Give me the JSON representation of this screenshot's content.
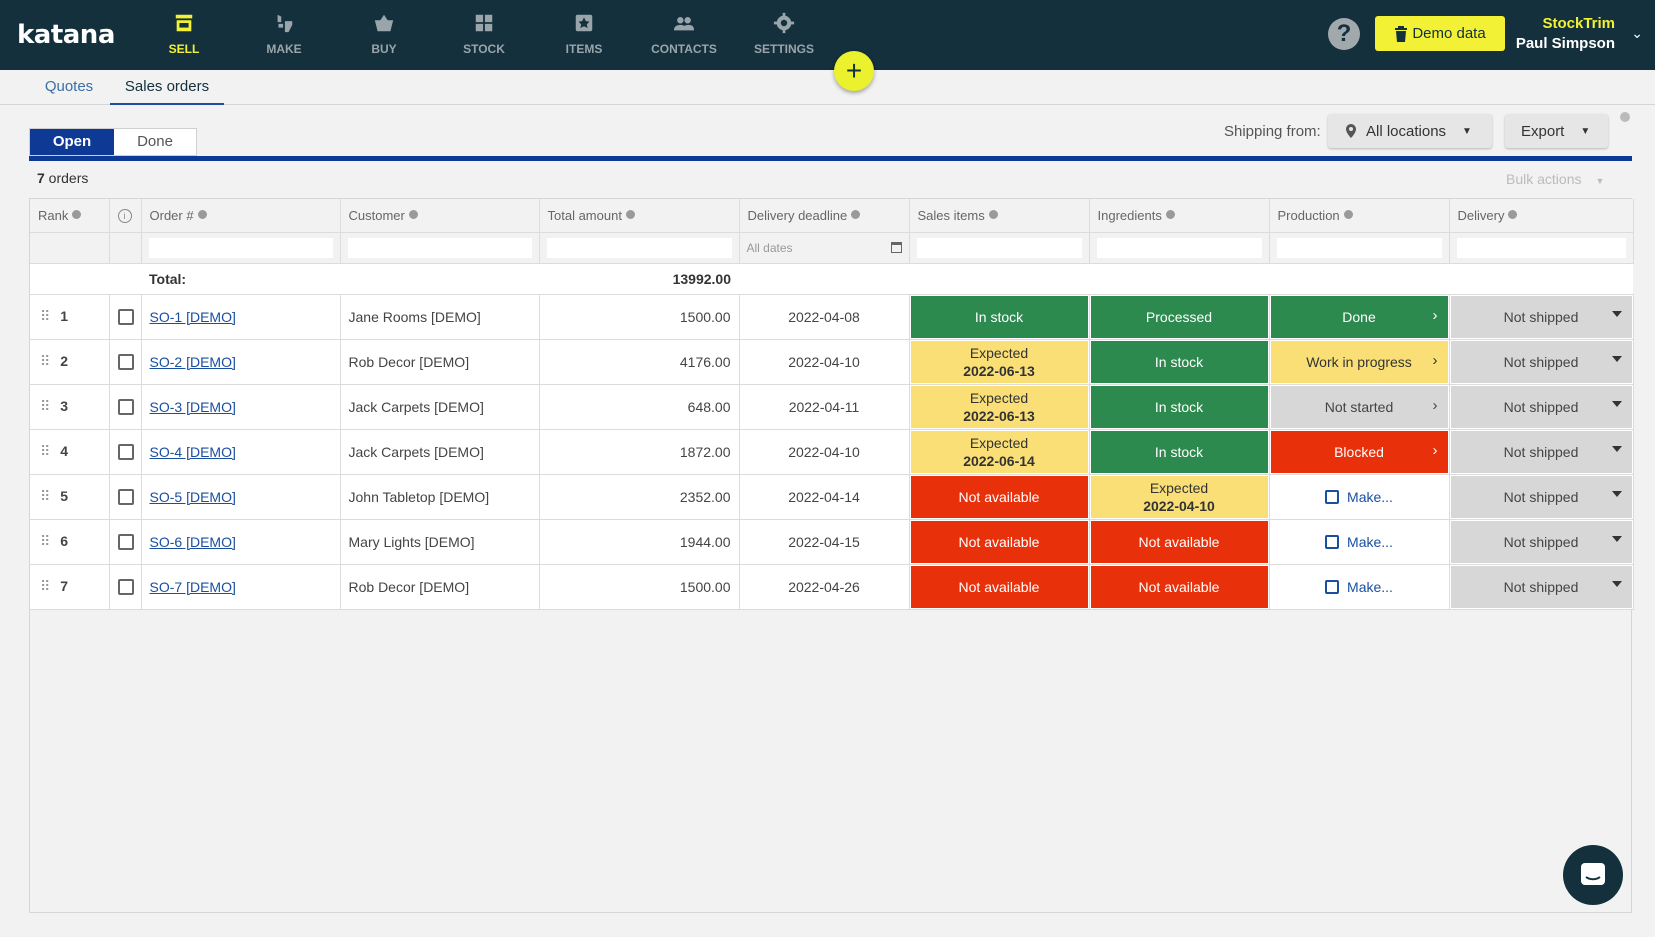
{
  "header": {
    "logo": "katana",
    "nav": [
      {
        "label": "SELL",
        "icon": "shop-icon"
      },
      {
        "label": "MAKE",
        "icon": "make-icon"
      },
      {
        "label": "BUY",
        "icon": "basket-icon"
      },
      {
        "label": "STOCK",
        "icon": "stock-icon"
      },
      {
        "label": "ITEMS",
        "icon": "items-icon"
      },
      {
        "label": "CONTACTS",
        "icon": "contacts-icon"
      },
      {
        "label": "SETTINGS",
        "icon": "gear-icon"
      }
    ],
    "add_label": "+",
    "help_label": "?",
    "demo_label": "Demo data",
    "company": "StockTrim",
    "user": "Paul Simpson",
    "accent": "#f2f135",
    "bg": "#13303c"
  },
  "subnav": {
    "tabs": [
      "Quotes",
      "Sales orders"
    ],
    "active": "Sales orders"
  },
  "toolbar": {
    "open_label": "Open",
    "done_label": "Done",
    "shipping_label": "Shipping from:",
    "location": "All locations",
    "export": "Export",
    "order_count": "7",
    "order_count_suffix": " orders",
    "bulk_actions": "Bulk actions"
  },
  "table": {
    "columns": [
      "Rank",
      "",
      "Order #",
      "Customer",
      "Total amount",
      "Delivery deadline",
      "Sales items",
      "Ingredients",
      "Production",
      "Delivery"
    ],
    "date_filter_placeholder": "All dates",
    "total_label": "Total:",
    "total_value": "13992.00",
    "rows": [
      {
        "rank": "1",
        "order": "SO-1 [DEMO]",
        "customer": "Jane Rooms [DEMO]",
        "amount": "1500.00",
        "deadline": "2022-04-08",
        "sales": {
          "text": "In stock",
          "sub": "",
          "status": "green"
        },
        "ingredients": {
          "text": "Processed",
          "sub": "",
          "status": "green"
        },
        "production": {
          "text": "Done",
          "status": "green"
        },
        "delivery": "Not shipped"
      },
      {
        "rank": "2",
        "order": "SO-2 [DEMO]",
        "customer": "Rob Decor [DEMO]",
        "amount": "4176.00",
        "deadline": "2022-04-10",
        "sales": {
          "text": "Expected",
          "sub": "2022-06-13",
          "status": "yellow"
        },
        "ingredients": {
          "text": "In stock",
          "sub": "",
          "status": "green"
        },
        "production": {
          "text": "Work in progress",
          "status": "yellow"
        },
        "delivery": "Not shipped"
      },
      {
        "rank": "3",
        "order": "SO-3 [DEMO]",
        "customer": "Jack Carpets [DEMO]",
        "amount": "648.00",
        "deadline": "2022-04-11",
        "sales": {
          "text": "Expected",
          "sub": "2022-06-13",
          "status": "yellow"
        },
        "ingredients": {
          "text": "In stock",
          "sub": "",
          "status": "green"
        },
        "production": {
          "text": "Not started",
          "status": "grey"
        },
        "delivery": "Not shipped"
      },
      {
        "rank": "4",
        "order": "SO-4 [DEMO]",
        "customer": "Jack Carpets [DEMO]",
        "amount": "1872.00",
        "deadline": "2022-04-10",
        "sales": {
          "text": "Expected",
          "sub": "2022-06-14",
          "status": "yellow"
        },
        "ingredients": {
          "text": "In stock",
          "sub": "",
          "status": "green"
        },
        "production": {
          "text": "Blocked",
          "status": "red"
        },
        "delivery": "Not shipped"
      },
      {
        "rank": "5",
        "order": "SO-5 [DEMO]",
        "customer": "John Tabletop [DEMO]",
        "amount": "2352.00",
        "deadline": "2022-04-14",
        "sales": {
          "text": "Not available",
          "sub": "",
          "status": "red"
        },
        "ingredients": {
          "text": "Expected",
          "sub": "2022-04-10",
          "status": "yellow"
        },
        "production": {
          "text": "Make...",
          "status": "make"
        },
        "delivery": "Not shipped"
      },
      {
        "rank": "6",
        "order": "SO-6 [DEMO]",
        "customer": "Mary Lights [DEMO]",
        "amount": "1944.00",
        "deadline": "2022-04-15",
        "sales": {
          "text": "Not available",
          "sub": "",
          "status": "red"
        },
        "ingredients": {
          "text": "Not available",
          "sub": "",
          "status": "red"
        },
        "production": {
          "text": "Make...",
          "status": "make"
        },
        "delivery": "Not shipped"
      },
      {
        "rank": "7",
        "order": "SO-7 [DEMO]",
        "customer": "Rob Decor [DEMO]",
        "amount": "1500.00",
        "deadline": "2022-04-26",
        "sales": {
          "text": "Not available",
          "sub": "",
          "status": "red"
        },
        "ingredients": {
          "text": "Not available",
          "sub": "",
          "status": "red"
        },
        "production": {
          "text": "Make...",
          "status": "make"
        },
        "delivery": "Not shipped"
      }
    ]
  },
  "status_colors": {
    "green": "#2d8a4e",
    "yellow": "#f9df76",
    "red": "#e8300b",
    "grey": "#d7d7d7",
    "accent_blue": "#0d3a94",
    "deadline_red": "#d9361f"
  }
}
